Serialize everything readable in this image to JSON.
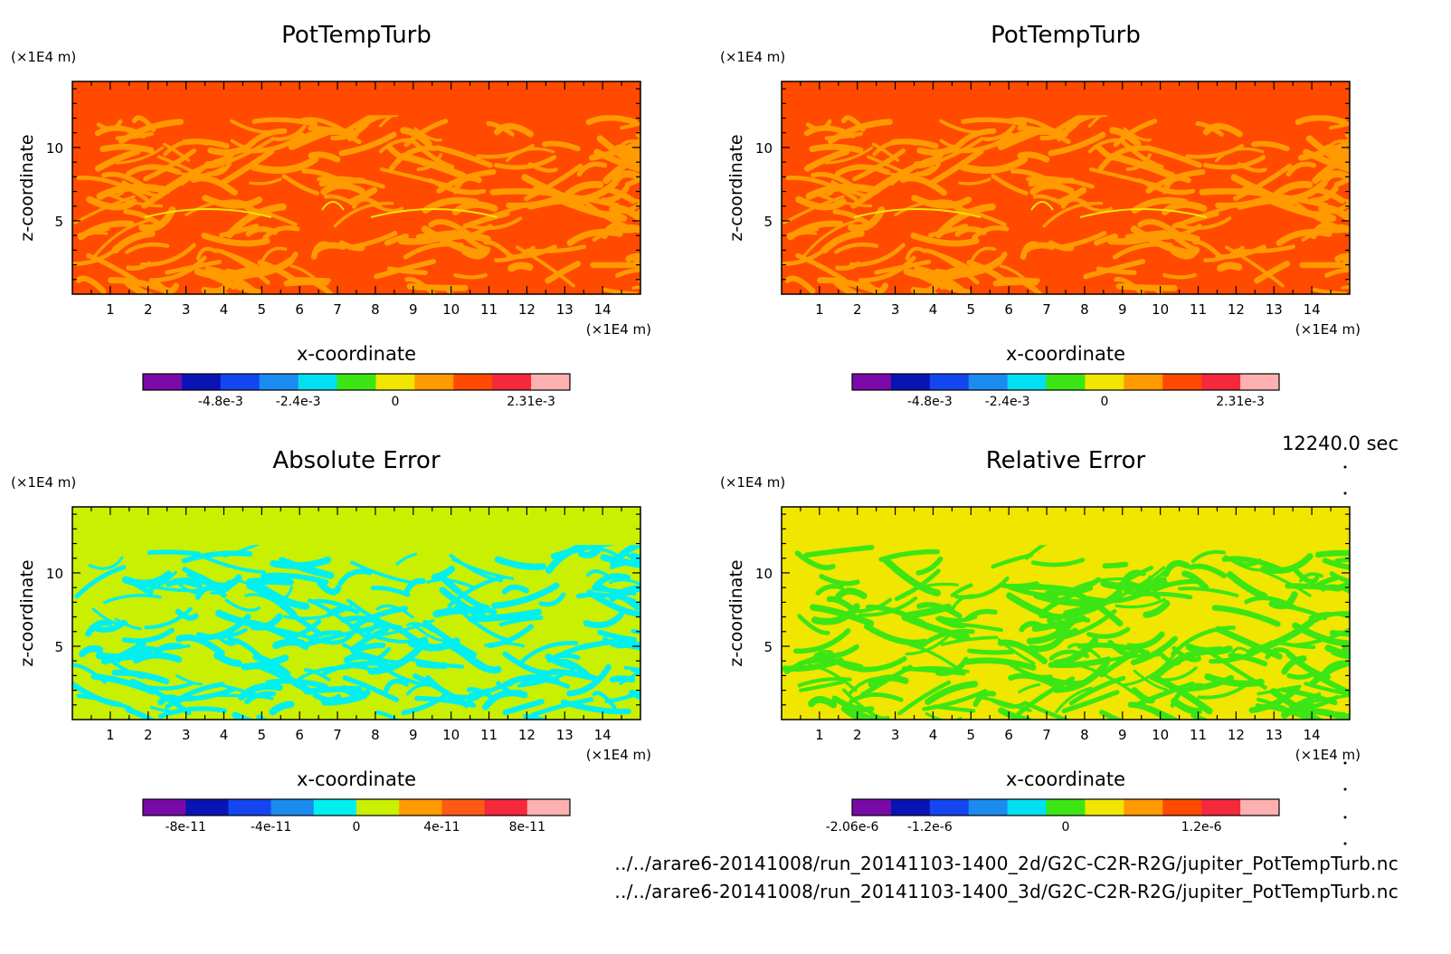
{
  "time_label": "12240.0 sec",
  "files": [
    "../../arare6-20141008/run_20141103-1400_2d/G2C-C2R-R2G/jupiter_PotTempTurb.nc",
    "../../arare6-20141008/run_20141103-1400_3d/G2C-C2R-R2G/jupiter_PotTempTurb.nc"
  ],
  "chart_data": [
    {
      "type": "heatmap",
      "title": "PotTempTurb",
      "xlabel": "x-coordinate",
      "ylabel": "z-coordinate",
      "x_unit": "(×1E4 m)",
      "y_unit": "(×1E4 m)",
      "xlim": [
        0,
        15
      ],
      "ylim": [
        0,
        14.5
      ],
      "x_ticks": [
        "1",
        "2",
        "3",
        "4",
        "5",
        "6",
        "7",
        "8",
        "9",
        "10",
        "11",
        "12",
        "13",
        "14"
      ],
      "y_ticks": [
        "5",
        "10"
      ],
      "colorbar": {
        "colors": [
          "#7a0aa8",
          "#0a14b4",
          "#1446f0",
          "#1a8cf0",
          "#00e0f0",
          "#3ce614",
          "#f0e600",
          "#ff9a00",
          "#ff4a00",
          "#f5283c",
          "#ffb0b0"
        ],
        "tick_labels": [
          "-4.8e-3",
          "-2.4e-3",
          "0",
          "2.31e-3"
        ],
        "tick_index": [
          2,
          4,
          6.5,
          10
        ]
      },
      "pattern": {
        "base": "#ff4a00",
        "alt": "#ff9a00",
        "accent": "#f0e600",
        "top_band": [
          12.2,
          14.5
        ]
      }
    },
    {
      "type": "heatmap",
      "title": "PotTempTurb",
      "xlabel": "x-coordinate",
      "ylabel": "z-coordinate",
      "x_unit": "(×1E4 m)",
      "y_unit": "(×1E4 m)",
      "xlim": [
        0,
        15
      ],
      "ylim": [
        0,
        14.5
      ],
      "x_ticks": [
        "1",
        "2",
        "3",
        "4",
        "5",
        "6",
        "7",
        "8",
        "9",
        "10",
        "11",
        "12",
        "13",
        "14"
      ],
      "y_ticks": [
        "5",
        "10"
      ],
      "colorbar": {
        "colors": [
          "#7a0aa8",
          "#0a14b4",
          "#1446f0",
          "#1a8cf0",
          "#00e0f0",
          "#3ce614",
          "#f0e600",
          "#ff9a00",
          "#ff4a00",
          "#f5283c",
          "#ffb0b0"
        ],
        "tick_labels": [
          "-4.8e-3",
          "-2.4e-3",
          "0",
          "2.31e-3"
        ],
        "tick_index": [
          2,
          4,
          6.5,
          10
        ]
      },
      "pattern": {
        "base": "#ff4a00",
        "alt": "#ff9a00",
        "accent": "#f0e600",
        "top_band": [
          12.2,
          14.5
        ]
      }
    },
    {
      "type": "heatmap",
      "title": "Absolute Error",
      "xlabel": "x-coordinate",
      "ylabel": "z-coordinate",
      "x_unit": "(×1E4 m)",
      "y_unit": "(×1E4 m)",
      "xlim": [
        0,
        15
      ],
      "ylim": [
        0,
        14.5
      ],
      "x_ticks": [
        "1",
        "2",
        "3",
        "4",
        "5",
        "6",
        "7",
        "8",
        "9",
        "10",
        "11",
        "12",
        "13",
        "14"
      ],
      "y_ticks": [
        "5",
        "10"
      ],
      "colorbar": {
        "colors": [
          "#7a0aa8",
          "#0a14b4",
          "#1446f0",
          "#1a8cf0",
          "#00f0f0",
          "#c8f000",
          "#ff9a00",
          "#ff5a14",
          "#f5283c",
          "#ffb0b0"
        ],
        "tick_labels": [
          "-8e-11",
          "-4e-11",
          "0",
          "4e-11",
          "8e-11"
        ],
        "tick_index": [
          1,
          3,
          5,
          7,
          9
        ]
      },
      "pattern": {
        "base": "#c8f000",
        "alt": "#00f0f0",
        "accent": "#00f0f0",
        "top_band": [
          11.9,
          14.5
        ]
      }
    },
    {
      "type": "heatmap",
      "title": "Relative Error",
      "xlabel": "x-coordinate",
      "ylabel": "z-coordinate",
      "x_unit": "(×1E4 m)",
      "y_unit": "(×1E4 m)",
      "xlim": [
        0,
        15
      ],
      "ylim": [
        0,
        14.5
      ],
      "x_ticks": [
        "1",
        "2",
        "3",
        "4",
        "5",
        "6",
        "7",
        "8",
        "9",
        "10",
        "11",
        "12",
        "13",
        "14"
      ],
      "y_ticks": [
        "5",
        "10"
      ],
      "colorbar": {
        "colors": [
          "#7a0aa8",
          "#0a14b4",
          "#1446f0",
          "#1a8cf0",
          "#00e0f0",
          "#3ce614",
          "#f0e600",
          "#ff9a00",
          "#ff4a00",
          "#f5283c",
          "#ffb0b0"
        ],
        "tick_labels": [
          "-2.06e-6",
          "-1.2e-6",
          "0",
          "1.2e-6"
        ],
        "tick_index": [
          0,
          2,
          5.5,
          9
        ]
      },
      "pattern": {
        "base": "#f0e600",
        "alt": "#3ce614",
        "accent": "#3ce614",
        "top_band": [
          11.9,
          14.5
        ]
      }
    }
  ]
}
